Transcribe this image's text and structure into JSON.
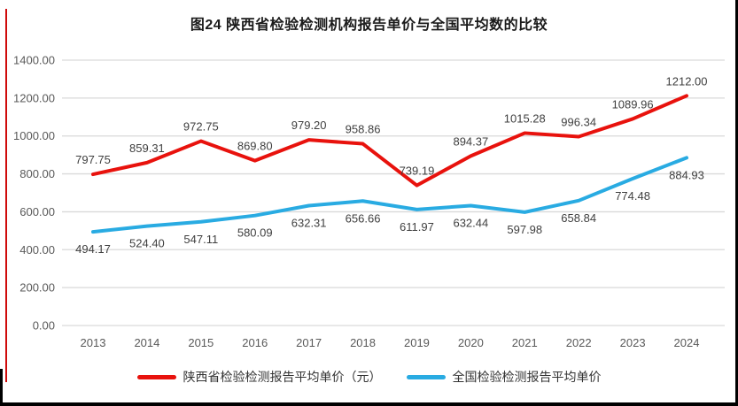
{
  "title": "图24 陕西省检验检测机构报告单价与全国平均数的比较",
  "colors": {
    "shaanxi_line": "#e8120d",
    "national_line": "#29abe2",
    "gridline": "#d9d9d9",
    "axis_text": "#595959",
    "data_label_text": "#3f3f3f",
    "frame": "#000000",
    "left_edge_line": "#cf0a0a"
  },
  "chart_data": {
    "type": "line",
    "title": "图24 陕西省检验检测机构报告单价与全国平均数的比较",
    "categories": [
      "2013",
      "2014",
      "2015",
      "2016",
      "2017",
      "2018",
      "2019",
      "2020",
      "2021",
      "2022",
      "2023",
      "2024"
    ],
    "series": [
      {
        "name": "陕西省检验检测报告平均单价（元）",
        "color_key": "shaanxi_line",
        "label_position": "above",
        "values": [
          797.75,
          859.31,
          972.75,
          869.8,
          979.2,
          958.86,
          739.19,
          894.37,
          1015.28,
          996.34,
          1089.96,
          1212.0
        ]
      },
      {
        "name": "全国检验检测报告平均单价",
        "color_key": "national_line",
        "label_position": "below",
        "values": [
          494.17,
          524.4,
          547.11,
          580.09,
          632.31,
          656.66,
          611.97,
          632.44,
          597.98,
          658.84,
          774.48,
          884.93
        ]
      }
    ],
    "xlabel": "",
    "ylabel": "",
    "ylim": [
      0,
      1400
    ],
    "ytick_step": 200,
    "ytick_format_decimals": 2,
    "grid": "horizontal",
    "legend_position": "bottom",
    "value_labels": true,
    "value_label_decimals": 2
  }
}
